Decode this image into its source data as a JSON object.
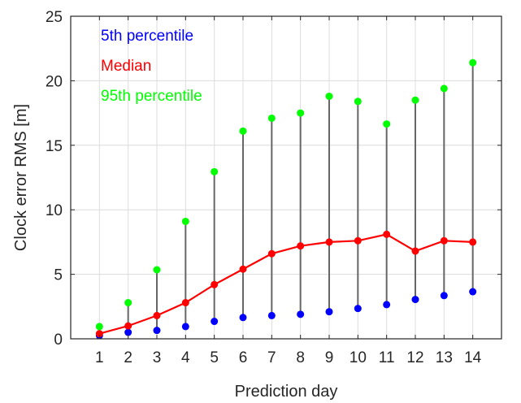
{
  "chart_data": {
    "type": "scatter",
    "xlabel": "Prediction day",
    "ylabel": "Clock error RMS [m]",
    "x": [
      1,
      2,
      3,
      4,
      5,
      6,
      7,
      8,
      9,
      10,
      11,
      12,
      13,
      14
    ],
    "xlim": [
      0,
      15
    ],
    "ylim": [
      0,
      25
    ],
    "xticks": [
      "1",
      "2",
      "3",
      "4",
      "5",
      "6",
      "7",
      "8",
      "9",
      "10",
      "11",
      "12",
      "13",
      "14"
    ],
    "yticks": [
      "0",
      "5",
      "10",
      "15",
      "20",
      "25"
    ],
    "grid": true,
    "legend_position": "top-left",
    "series": [
      {
        "name": "5th percentile",
        "color": "#0000ff",
        "style": "markers",
        "values": [
          0.25,
          0.5,
          0.65,
          0.95,
          1.35,
          1.65,
          1.8,
          1.9,
          2.1,
          2.35,
          2.65,
          3.05,
          3.35,
          3.65
        ]
      },
      {
        "name": "Median",
        "color": "#ff0000",
        "style": "line-markers",
        "values": [
          0.4,
          1.0,
          1.8,
          2.8,
          4.2,
          5.4,
          6.6,
          7.2,
          7.5,
          7.6,
          8.1,
          6.8,
          7.6,
          7.5
        ]
      },
      {
        "name": "95th percentile",
        "color": "#00ff00",
        "style": "markers",
        "values": [
          0.95,
          2.8,
          5.35,
          9.1,
          12.95,
          16.1,
          17.1,
          17.5,
          18.8,
          18.4,
          16.65,
          18.5,
          19.4,
          21.4
        ]
      }
    ],
    "range_bar_color": "#666666"
  }
}
